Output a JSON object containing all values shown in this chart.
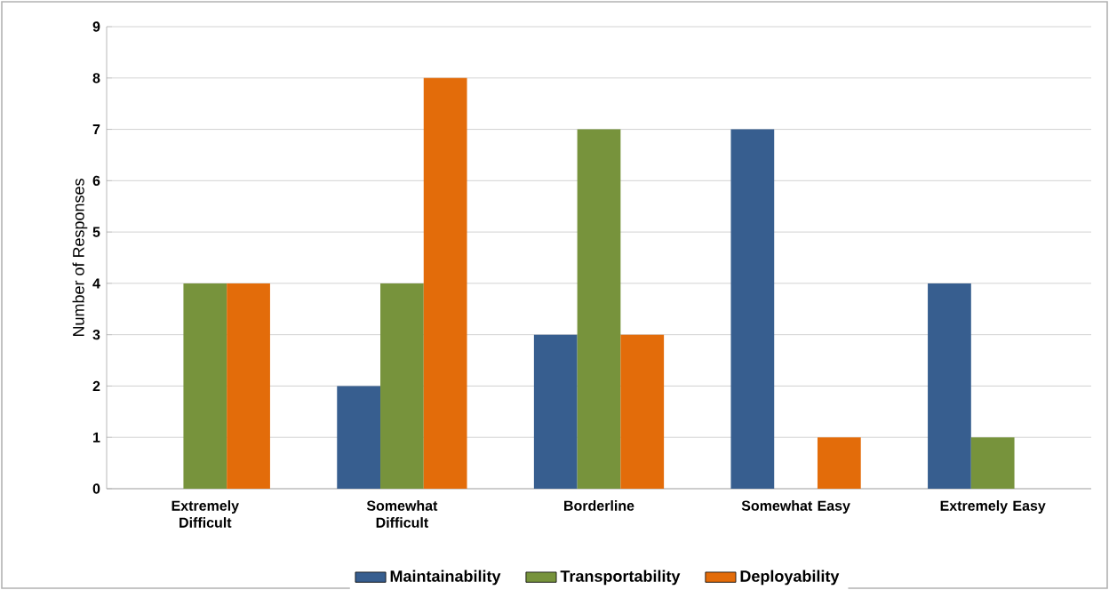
{
  "chart_data": {
    "type": "bar",
    "ylabel": "Number of Responses",
    "categories": [
      "Extremely Difficult",
      "Somewhat Difficult",
      "Borderline",
      "Somewhat Easy",
      "Extremely Easy"
    ],
    "series": [
      {
        "name": "Maintainability",
        "color": "#375e8f",
        "values": [
          0,
          2,
          3,
          7,
          4
        ]
      },
      {
        "name": "Transportability",
        "color": "#77933c",
        "values": [
          4,
          4,
          7,
          0,
          1
        ]
      },
      {
        "name": "Deployability",
        "color": "#e36c0a",
        "values": [
          4,
          8,
          3,
          1,
          0
        ]
      }
    ],
    "ylim": [
      0,
      9
    ],
    "yticks": [
      0,
      1,
      2,
      3,
      4,
      5,
      6,
      7,
      8,
      9
    ],
    "grid": "y",
    "legend": "bottom"
  }
}
